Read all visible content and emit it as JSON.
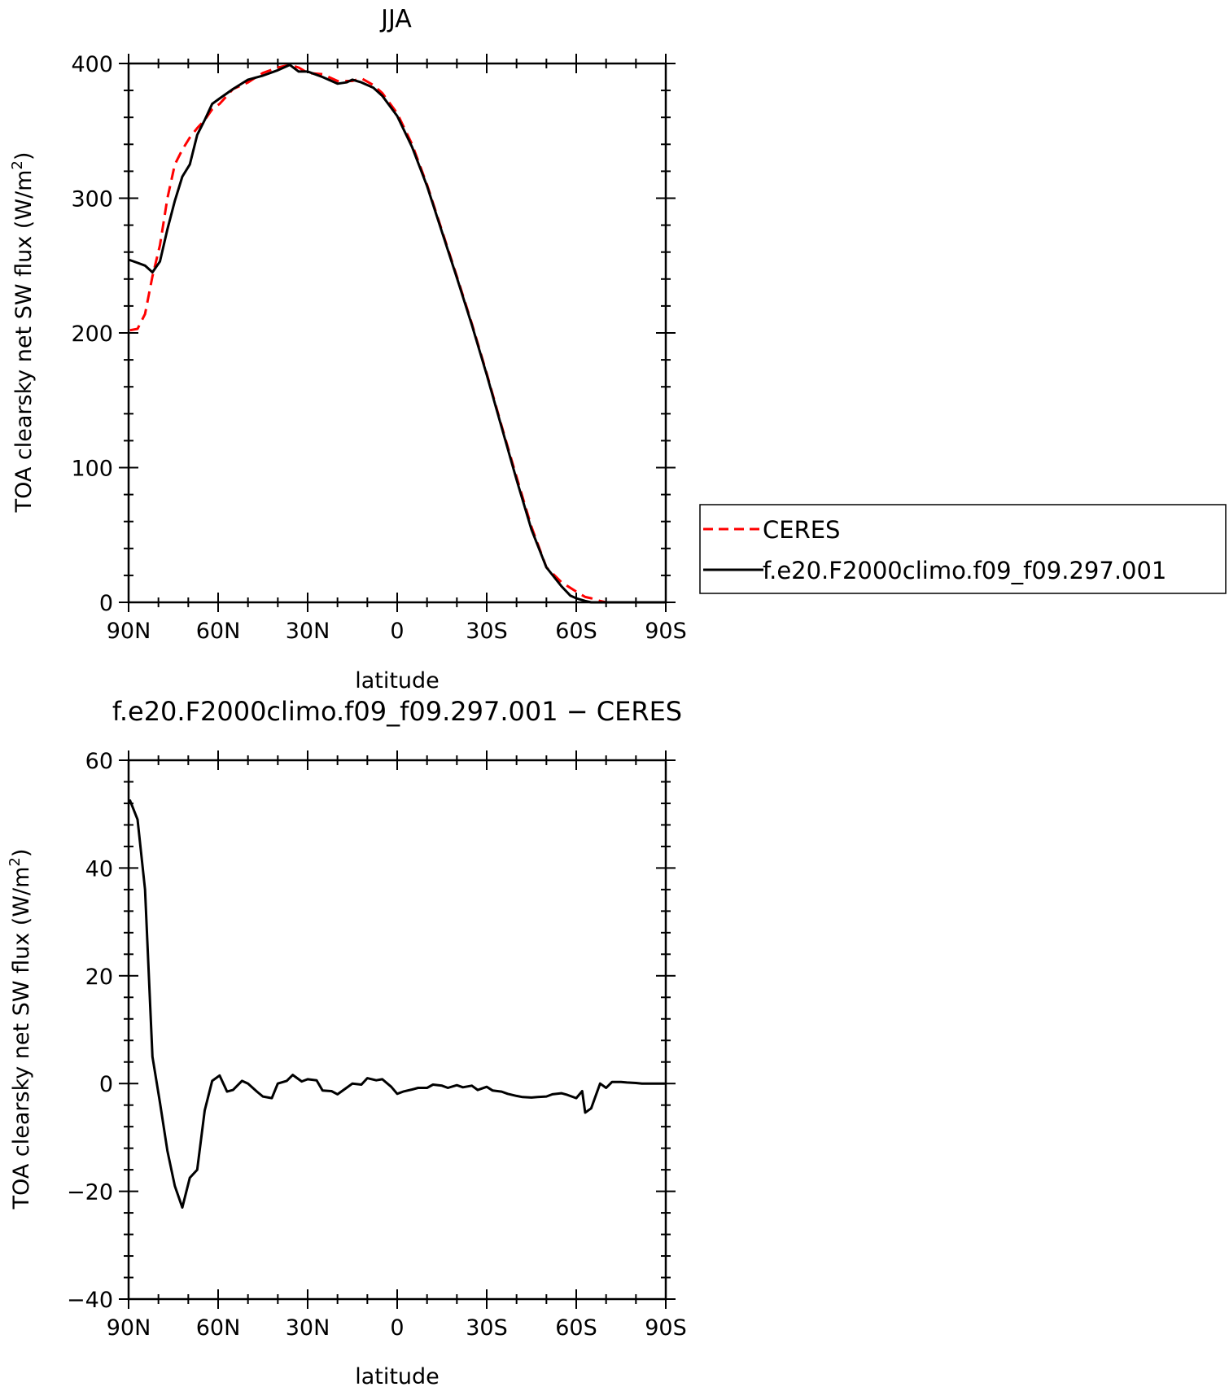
{
  "chart_data": [
    {
      "type": "line",
      "title": "JJA",
      "xlabel": "latitude",
      "ylabel": "TOA clearsky net SW flux (W/m",
      "ylabel_superscript": "2",
      "ylabel_suffix": ")",
      "xlim": [
        -90,
        90
      ],
      "ylim": [
        0,
        400
      ],
      "xticks": [
        -90,
        -60,
        -30,
        0,
        30,
        60,
        90
      ],
      "xtick_labels": [
        "90N",
        "60N",
        "30N",
        "0",
        "30S",
        "60S",
        "90S"
      ],
      "yticks": [
        0,
        100,
        200,
        300,
        400
      ],
      "ytick_labels": [
        "0",
        "100",
        "200",
        "300",
        "400"
      ],
      "legend": {
        "placement": "right",
        "entries": [
          "CERES",
          "f.e20.F2000climo.f09_f09.297.001"
        ]
      },
      "series": [
        {
          "name": "CERES",
          "color": "#ff0000",
          "dash": "dashed",
          "x": [
            -89.5,
            -87,
            -84.5,
            -82,
            -79.5,
            -77,
            -74.5,
            -72,
            -69.5,
            -67,
            -64.5,
            -62,
            -59.5,
            -55,
            -50,
            -45,
            -40,
            -36,
            -33,
            -30,
            -25,
            -20,
            -15,
            -12,
            -8,
            -5,
            0,
            5,
            10,
            15,
            20,
            25,
            30,
            35,
            40,
            45,
            50,
            55,
            60,
            63,
            65,
            68,
            70,
            75,
            80,
            85,
            89.5
          ],
          "y": [
            202,
            203,
            214,
            242,
            265,
            300,
            325,
            336,
            345,
            352,
            358,
            366,
            370,
            381,
            386,
            393,
            397,
            399,
            397,
            393,
            392,
            387,
            387,
            389,
            384,
            378,
            363,
            340,
            310,
            276,
            242,
            207,
            170,
            131,
            93,
            56,
            26,
            15,
            8,
            4,
            3,
            1,
            0,
            0,
            0,
            0,
            0
          ]
        },
        {
          "name": "f.e20.F2000climo.f09_f09.297.001",
          "color": "#000000",
          "dash": "solid",
          "x": [
            -89.5,
            -87,
            -84.5,
            -82,
            -79.5,
            -77,
            -74.5,
            -72,
            -69.5,
            -67,
            -64.5,
            -62,
            -59.5,
            -55,
            -50,
            -45,
            -40,
            -36,
            -33,
            -30,
            -25,
            -20,
            -17,
            -15,
            -12,
            -8,
            -5,
            0,
            5,
            10,
            15,
            20,
            25,
            30,
            35,
            40,
            45,
            50,
            55,
            58,
            60,
            63,
            65,
            68,
            70,
            75,
            80,
            85,
            89.5
          ],
          "y": [
            254,
            252,
            250,
            245,
            253,
            277,
            298,
            316,
            325,
            347,
            358,
            370,
            374,
            381,
            388,
            391,
            395,
            399,
            394,
            394,
            390,
            385,
            386,
            388,
            386,
            382,
            376,
            361,
            338,
            309,
            275,
            241,
            206,
            169,
            130,
            91,
            54,
            26,
            12,
            5,
            3,
            1,
            0,
            0,
            0,
            0,
            0,
            0,
            0
          ]
        }
      ]
    },
    {
      "type": "line",
      "title": "f.e20.F2000climo.f09_f09.297.001 − CERES",
      "xlabel": "latitude",
      "ylabel": "TOA clearsky net SW flux (W/m",
      "ylabel_superscript": "2",
      "ylabel_suffix": ")",
      "xlim": [
        -90,
        90
      ],
      "ylim": [
        -40,
        60
      ],
      "xticks": [
        -90,
        -60,
        -30,
        0,
        30,
        60,
        90
      ],
      "xtick_labels": [
        "90N",
        "60N",
        "30N",
        "0",
        "30S",
        "60S",
        "90S"
      ],
      "yticks": [
        -40,
        -20,
        0,
        20,
        40,
        60
      ],
      "ytick_labels": [
        "−40",
        "−20",
        "0",
        "20",
        "40",
        "60"
      ],
      "series": [
        {
          "color": "#000000",
          "dash": "solid",
          "x": [
            -89.5,
            -87,
            -84.5,
            -82,
            -79.5,
            -77,
            -74.5,
            -72,
            -69.5,
            -67,
            -64.5,
            -62,
            -59.5,
            -57,
            -55,
            -52,
            -50,
            -47,
            -45,
            -42,
            -40,
            -37,
            -35,
            -32,
            -30,
            -27,
            -25,
            -22,
            -20,
            -17,
            -15,
            -12,
            -10,
            -7,
            -5,
            -2,
            0,
            2,
            5,
            7,
            10,
            12,
            15,
            17,
            20,
            22,
            25,
            27,
            30,
            32,
            35,
            37,
            40,
            42,
            45,
            47,
            50,
            52,
            55,
            57,
            60,
            62,
            63,
            65,
            68,
            70,
            72,
            75,
            77,
            80,
            82,
            85,
            89.5
          ],
          "y": [
            52.5,
            49,
            36,
            5,
            -3.5,
            -12.5,
            -19,
            -23,
            -17.5,
            -16,
            -5,
            0.5,
            1.5,
            -1.5,
            -1.2,
            0.5,
            0,
            -1.5,
            -2.4,
            -2.7,
            0,
            0.5,
            1.6,
            0.4,
            0.8,
            0.6,
            -1.3,
            -1.4,
            -2,
            -0.8,
            0,
            -0.2,
            1,
            0.6,
            0.8,
            -0.6,
            -1.9,
            -1.5,
            -1.1,
            -0.8,
            -0.8,
            -0.2,
            -0.4,
            -0.8,
            -0.3,
            -0.7,
            -0.4,
            -1.2,
            -0.6,
            -1.3,
            -1.5,
            -1.9,
            -2.3,
            -2.5,
            -2.6,
            -2.5,
            -2.4,
            -2.0,
            -1.8,
            -2.1,
            -2.7,
            -1.4,
            -5.4,
            -4.6,
            0,
            -0.8,
            0.3,
            0.3,
            0.2,
            0.1,
            0,
            0,
            0
          ]
        }
      ]
    }
  ]
}
